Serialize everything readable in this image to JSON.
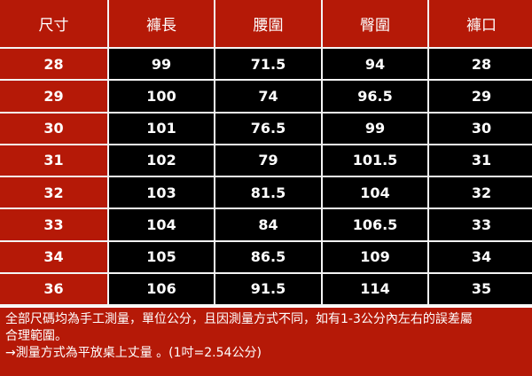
{
  "table": {
    "headers": [
      "尺寸",
      "褲長",
      "腰圍",
      "臀圍",
      "褲口"
    ],
    "rows": [
      [
        "28",
        "99",
        "71.5",
        "94",
        "28"
      ],
      [
        "29",
        "100",
        "74",
        "96.5",
        "29"
      ],
      [
        "30",
        "101",
        "76.5",
        "99",
        "30"
      ],
      [
        "31",
        "102",
        "79",
        "101.5",
        "31"
      ],
      [
        "32",
        "103",
        "81.5",
        "104",
        "32"
      ],
      [
        "33",
        "104",
        "84",
        "106.5",
        "33"
      ],
      [
        "34",
        "105",
        "86.5",
        "109",
        "34"
      ],
      [
        "36",
        "106",
        "91.5",
        "114",
        "35"
      ]
    ]
  },
  "notes": {
    "line1": "全部尺碼均為手工測量，單位公分，且因測量方式不同，如有1-3公分內左右的誤差屬",
    "line2": "合理範圍。",
    "line3": "→測量方式為平放桌上丈量 。(1吋=2.54公分)"
  },
  "colors": {
    "header_bg": "#b51907",
    "body_bg": "#000000",
    "grid_lines": "#f4f4f4",
    "text": "#ffffff"
  }
}
